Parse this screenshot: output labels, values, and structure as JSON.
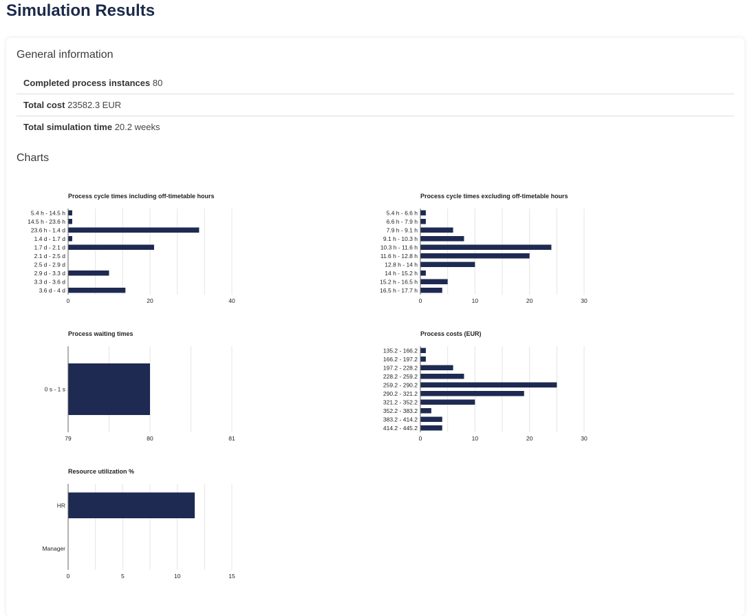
{
  "page": {
    "title": "Simulation Results"
  },
  "general": {
    "heading": "General information",
    "rows": [
      {
        "label": "Completed process instances",
        "value": "80"
      },
      {
        "label": "Total cost",
        "value": "23582.3 EUR"
      },
      {
        "label": "Total simulation time",
        "value": "20.2 weeks"
      }
    ]
  },
  "charts_heading": "Charts",
  "colors": {
    "bar": "#1e2a52",
    "grid": "#e4e4e4",
    "axis": "#666666"
  },
  "chart_data": [
    {
      "type": "bar",
      "orientation": "horizontal",
      "title": "Process cycle times including off-timetable hours",
      "categories": [
        "5.4 h - 14.5 h",
        "14.5 h - 23.6 h",
        "23.6 h - 1.4 d",
        "1.4 d - 1.7 d",
        "1.7 d - 2.1 d",
        "2.1 d - 2.5 d",
        "2.5 d - 2.9 d",
        "2.9 d - 3.3 d",
        "3.3 d - 3.6 d",
        "3.6 d - 4 d"
      ],
      "values": [
        1,
        1,
        32,
        1,
        21,
        0,
        0,
        10,
        0,
        14
      ],
      "xlim": [
        0,
        40
      ],
      "ticks": [
        0,
        20,
        40
      ],
      "gridlines": [
        0,
        6.67,
        13.33,
        20,
        26.67,
        33.33,
        40
      ],
      "grid": true
    },
    {
      "type": "bar",
      "orientation": "horizontal",
      "title": "Process cycle times excluding off-timetable hours",
      "categories": [
        "5.4 h - 6.6 h",
        "6.6 h - 7.9 h",
        "7.9 h - 9.1 h",
        "9.1 h - 10.3 h",
        "10.3 h - 11.6 h",
        "11.6 h - 12.8 h",
        "12.8 h - 14 h",
        "14 h - 15.2 h",
        "15.2 h - 16.5 h",
        "16.5 h - 17.7 h"
      ],
      "values": [
        1,
        1,
        6,
        8,
        24,
        20,
        10,
        1,
        5,
        4
      ],
      "xlim": [
        0,
        30
      ],
      "ticks": [
        0,
        10,
        20,
        30
      ],
      "gridlines": [
        0,
        5,
        10,
        15,
        20,
        25,
        30
      ],
      "grid": true
    },
    {
      "type": "bar",
      "orientation": "horizontal",
      "title": "Process waiting times",
      "categories": [
        "0 s - 1 s"
      ],
      "values": [
        80
      ],
      "xlim": [
        79,
        81
      ],
      "ticks": [
        79,
        80,
        81
      ],
      "gridlines": [
        79,
        79.5,
        80,
        80.5,
        81
      ],
      "grid": true
    },
    {
      "type": "bar",
      "orientation": "horizontal",
      "title": "Process costs (EUR)",
      "categories": [
        "135.2 - 166.2",
        "166.2 - 197.2",
        "197.2 - 228.2",
        "228.2 - 259.2",
        "259.2 - 290.2",
        "290.2 - 321.2",
        "321.2 - 352.2",
        "352.2 - 383.2",
        "383.2 - 414.2",
        "414.2 - 445.2"
      ],
      "values": [
        1,
        1,
        6,
        8,
        25,
        19,
        10,
        2,
        4,
        4
      ],
      "xlim": [
        0,
        30
      ],
      "ticks": [
        0,
        10,
        20,
        30
      ],
      "gridlines": [
        0,
        5,
        10,
        15,
        20,
        25,
        30
      ],
      "grid": true
    },
    {
      "type": "bar",
      "orientation": "horizontal",
      "title": "Resource utilization %",
      "categories": [
        "HR",
        "Manager"
      ],
      "values": [
        11.6,
        0
      ],
      "xlim": [
        0,
        15
      ],
      "ticks": [
        0,
        5,
        10,
        15
      ],
      "gridlines": [
        0,
        2.5,
        5,
        7.5,
        10,
        12.5,
        15
      ],
      "grid": true
    }
  ]
}
